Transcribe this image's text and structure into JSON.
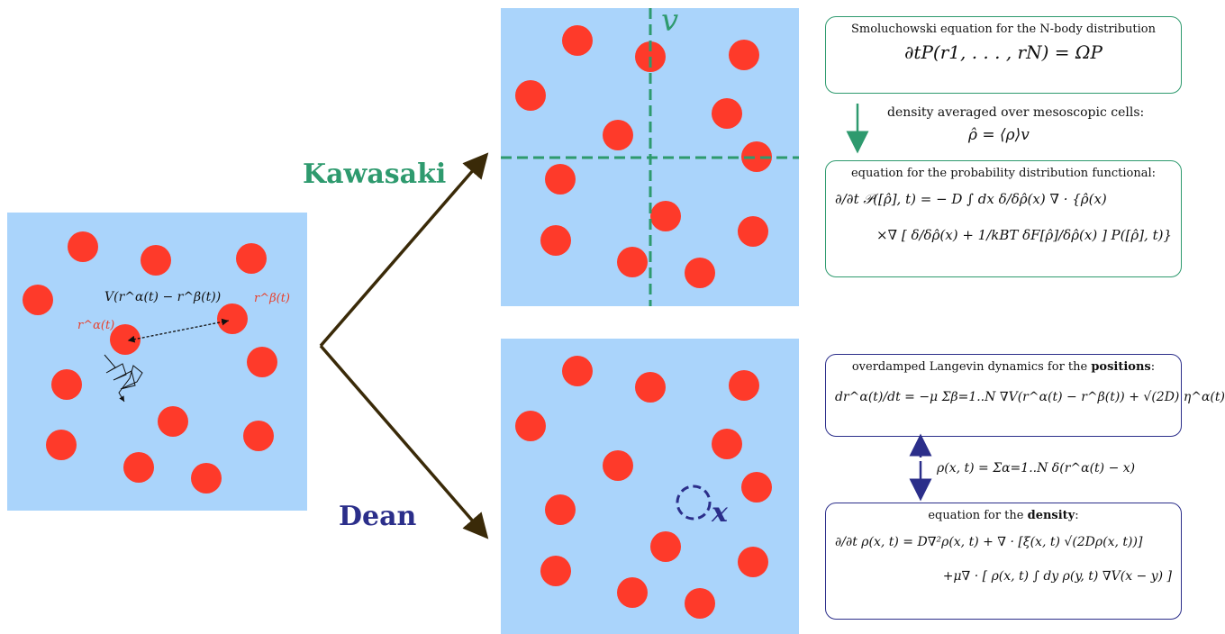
{
  "labels": {
    "kawasaki": "Kawasaki",
    "dean": "Dean",
    "cell_v": "v",
    "probe_x": "x"
  },
  "left_panel": {
    "pair_potential": "V(r^α(t) − r^β(t))",
    "r_alpha": "r^α(t)",
    "r_beta": "r^β(t)"
  },
  "kawasaki_boxes": {
    "top_title": "Smoluchowski equation for the N-body distribution",
    "top_eq": "∂tP(r1, . . . , rN) = ΩP",
    "mid_text": "density averaged over mesoscopic cells:",
    "mid_eq": "ρ̂ = ⟨ρ⟩v",
    "bottom_title": "equation for the probability distribution functional:",
    "bottom_eq1": "∂/∂t 𝒫([ρ̂], t) = − D ∫ dx δ/δρ̂(x) ∇ · {ρ̂(x)",
    "bottom_eq2": "×∇ [ δ/δρ̂(x) + 1/kBT δF[ρ̂]/δρ̂(x) ] P([ρ̂], t)}"
  },
  "dean_boxes": {
    "top_title_prefix": "overdamped Langevin dynamics for the ",
    "top_title_bold": "positions",
    "top_title_suffix": ":",
    "top_eq": "dr^α(t)/dt = −μ Σβ=1..N ∇V(r^α(t) − r^β(t)) + √(2D) η^α(t)",
    "mid_eq": "ρ(x, t) = Σα=1..N δ(r^α(t) − x)",
    "bottom_title_prefix": "equation for the ",
    "bottom_title_bold": "density",
    "bottom_title_suffix": ":",
    "bottom_eq1": "∂/∂t ρ(x, t) = D∇²ρ(x, t) + ∇ · [ξ(x, t) √(2Dρ(x, t))]",
    "bottom_eq2": "+μ∇ · [ ρ(x, t) ∫ dy ρ(y, t) ∇V(x − y) ]"
  },
  "colors": {
    "panel": "#aad4fb",
    "particle": "#fe3a2a",
    "kawasaki": "#2e9a6e",
    "dean": "#2b2e8a",
    "arrow": "#3a2a08"
  }
}
